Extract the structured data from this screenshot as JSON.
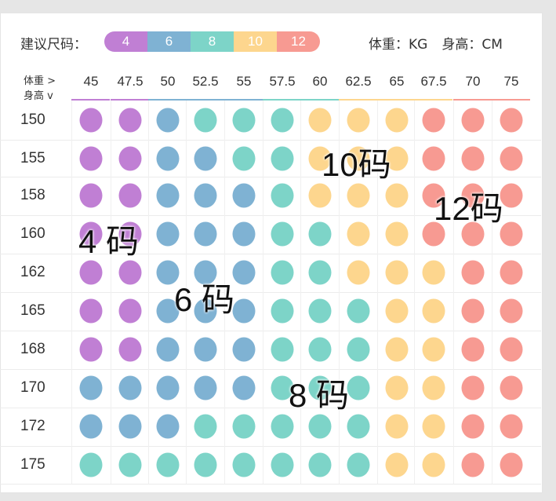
{
  "legend": {
    "label": "建议尺码：",
    "sizes": [
      {
        "label": "4",
        "color": "#c07fd4"
      },
      {
        "label": "6",
        "color": "#7fb2d3"
      },
      {
        "label": "8",
        "color": "#7dd4c8"
      },
      {
        "label": "10",
        "color": "#fdd68e"
      },
      {
        "label": "12",
        "color": "#f79a92"
      }
    ]
  },
  "units": {
    "weight": "体重：KG",
    "height": "身高：CM"
  },
  "corner": {
    "weight": "体重 >",
    "height": "身高 v"
  },
  "weights": [
    "45",
    "47.5",
    "50",
    "52.5",
    "55",
    "57.5",
    "60",
    "62.5",
    "65",
    "67.5",
    "70",
    "75"
  ],
  "heights": [
    "150",
    "155",
    "158",
    "160",
    "162",
    "165",
    "168",
    "170",
    "172",
    "175"
  ],
  "grid": [
    [
      4,
      4,
      6,
      8,
      8,
      8,
      10,
      10,
      10,
      12,
      12,
      12
    ],
    [
      4,
      4,
      6,
      6,
      8,
      8,
      10,
      10,
      10,
      12,
      12,
      12
    ],
    [
      4,
      4,
      6,
      6,
      6,
      8,
      10,
      10,
      10,
      12,
      12,
      12
    ],
    [
      4,
      4,
      6,
      6,
      6,
      8,
      8,
      10,
      10,
      12,
      12,
      12
    ],
    [
      4,
      4,
      6,
      6,
      6,
      8,
      8,
      10,
      10,
      10,
      12,
      12
    ],
    [
      4,
      4,
      6,
      6,
      6,
      8,
      8,
      8,
      10,
      10,
      12,
      12
    ],
    [
      4,
      4,
      6,
      6,
      6,
      8,
      8,
      8,
      10,
      10,
      12,
      12
    ],
    [
      6,
      6,
      6,
      6,
      6,
      8,
      8,
      8,
      10,
      10,
      12,
      12
    ],
    [
      6,
      6,
      6,
      8,
      8,
      8,
      8,
      8,
      10,
      10,
      12,
      12
    ],
    [
      8,
      8,
      8,
      8,
      8,
      8,
      8,
      8,
      10,
      10,
      12,
      12
    ]
  ],
  "overlays": {
    "s4": "4 码",
    "s6": "6 码",
    "s8": "8 码",
    "s10": "10码",
    "s12": "12码"
  }
}
